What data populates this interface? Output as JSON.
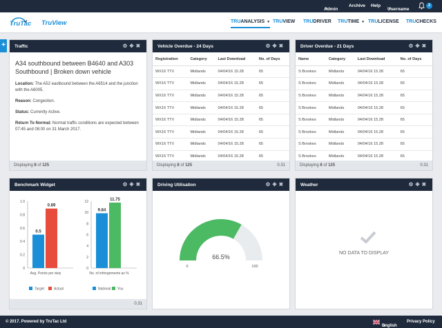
{
  "topbar": {
    "admin": "Admin",
    "archive": "Archive",
    "help": "Help",
    "username": "Username",
    "notifications": "2"
  },
  "brand": {
    "logo": "TruTac",
    "app": "TruView"
  },
  "nav": [
    {
      "pre": "TRU",
      "rest": "ANALYSIS",
      "dropdown": true,
      "active": true
    },
    {
      "pre": "TRU",
      "rest": "VIEW",
      "dropdown": false,
      "active": false
    },
    {
      "pre": "TRU",
      "rest": "DRIVER",
      "dropdown": false,
      "active": false
    },
    {
      "pre": "TRU",
      "rest": "TIME",
      "dropdown": true,
      "active": false
    },
    {
      "pre": "TRU",
      "rest": "LICENSE",
      "dropdown": false,
      "active": false
    },
    {
      "pre": "TRU",
      "rest": "CHECKS",
      "dropdown": false,
      "active": false
    }
  ],
  "add_button": "+",
  "traffic": {
    "title": "Traffic",
    "headline": "A34 southbound between B4640 and A303 Southbound | Broken down vehicle",
    "location_label": "Location:",
    "location": "The A52 eastbound between the A6514 and the junction with the A6005.",
    "reason_label": "Reason:",
    "reason": "Congestion.",
    "status_label": "Status:",
    "status": "Currently Active.",
    "return_label": "Return To Normal:",
    "return": "Normal traffic conditions are expected between 07:45 and 08:00 on 31 March 2017.",
    "foot_pre": "Displaying",
    "foot_shown": "8",
    "foot_of": "of",
    "foot_total": "125"
  },
  "vehicle": {
    "title": "Vehicle Overdue - 24 Days",
    "columns": [
      "Registration",
      "Category",
      "Last Download",
      "No. of Days"
    ],
    "rows": [
      [
        "WX16 TTV",
        "Midlands",
        "04/04/16   15.28",
        "65"
      ],
      [
        "WX16 TTV",
        "Midlands",
        "04/04/16   15.28",
        "65"
      ],
      [
        "WX16 TTV",
        "Midlands",
        "04/04/16   15.28",
        "65"
      ],
      [
        "WX16 TTV",
        "Midlands",
        "04/04/16   15.28",
        "65"
      ],
      [
        "WX16 TTV",
        "Midlands",
        "04/04/16   15.28",
        "65"
      ],
      [
        "WX16 TTV",
        "Midlands",
        "04/04/16   15.28",
        "65"
      ],
      [
        "WX16 TTV",
        "Midlands",
        "04/04/16   15.28",
        "65"
      ],
      [
        "WX16 TTV",
        "Midlands",
        "04/04/16   15.28",
        "65"
      ]
    ],
    "foot_pre": "Displaying",
    "foot_shown": "8",
    "foot_of": "of",
    "foot_total": "125",
    "version": "0.31"
  },
  "driver": {
    "title": "Driver Overdue - 21 Days",
    "columns": [
      "Name",
      "Category",
      "Last Download",
      "No. of Days"
    ],
    "rows": [
      [
        "S Brookes",
        "Midlands",
        "04/04/16   15.28",
        "65"
      ],
      [
        "S Brookes",
        "Midlands",
        "04/04/16   15.28",
        "65"
      ],
      [
        "S Brookes",
        "Midlands",
        "04/04/16   15.28",
        "65"
      ],
      [
        "S Brookes",
        "Midlands",
        "04/04/16   15.28",
        "65"
      ],
      [
        "S Brookes",
        "Midlands",
        "04/04/16   15.28",
        "65"
      ],
      [
        "S Brookes",
        "Midlands",
        "04/04/16   15.28",
        "65"
      ],
      [
        "S Brookes",
        "Midlands",
        "04/04/16   15.28",
        "65"
      ],
      [
        "S Brookes",
        "Midlands",
        "04/04/16   15.28",
        "65"
      ]
    ],
    "foot_pre": "Displaying",
    "foot_shown": "8",
    "foot_of": "of",
    "foot_total": "125",
    "version": "0.31"
  },
  "benchmark": {
    "title": "Benchmark Widget",
    "version": "0.31"
  },
  "utilisation": {
    "title": "Driving Utilisation"
  },
  "weather": {
    "title": "Weather",
    "message": "NO DATA TO DISPLAY"
  },
  "footer": {
    "copyright": "© 2017. Powered by TruTac Ltd",
    "language": "English",
    "privacy": "Privacy Policy"
  },
  "colors": {
    "navy": "#1f2b3c",
    "blue": "#1a8fd8",
    "red": "#e74c3c",
    "green": "#4cb963",
    "gauge_track": "#e9ecef"
  },
  "chart_data": [
    {
      "type": "bar",
      "categories": [
        "Avg. Points per duty"
      ],
      "series": [
        {
          "name": "Target",
          "values": [
            0.5
          ]
        },
        {
          "name": "Actual",
          "values": [
            0.89
          ]
        }
      ],
      "data_labels": [
        "0.5",
        "0.89"
      ],
      "ylim": [
        0,
        1
      ],
      "yticks": [
        "0",
        "0.2",
        "0.4",
        "0.6",
        "0.8",
        "1.0"
      ],
      "legend": "bottom",
      "grid": false
    },
    {
      "type": "bar",
      "categories": [
        "No. of infringements as %"
      ],
      "series": [
        {
          "name": "National",
          "values": [
            9.84
          ]
        },
        {
          "name": "You",
          "values": [
            11.75
          ]
        }
      ],
      "data_labels": [
        "9.84",
        "11.75"
      ],
      "ylim": [
        0,
        12
      ],
      "yticks": [
        "0",
        "2",
        "4",
        "6",
        "8",
        "10",
        "12"
      ],
      "legend": "bottom",
      "grid": false
    },
    {
      "type": "gauge",
      "value": 66.5,
      "value_label": "66.5%",
      "min": 0,
      "max": 100,
      "min_label": "0",
      "max_label": "100"
    }
  ]
}
